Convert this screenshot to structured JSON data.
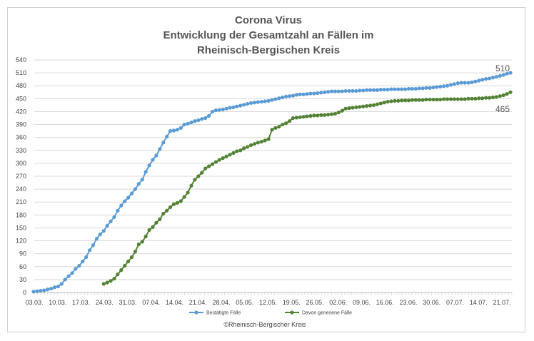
{
  "chart_data": {
    "type": "line",
    "title_lines": [
      "Corona Virus",
      "Entwicklung der Gesamtzahl an Fällen im",
      "Rheinisch-Bergischen Kreis"
    ],
    "xlabel": "",
    "ylabel": "",
    "ylim": [
      0,
      540
    ],
    "y_ticks": [
      0,
      30,
      60,
      90,
      120,
      150,
      180,
      210,
      240,
      270,
      300,
      330,
      360,
      390,
      420,
      450,
      480,
      510,
      540
    ],
    "x_range_days": [
      0,
      143
    ],
    "x_ticks": [
      "03.03.",
      "10.03.",
      "17.03.",
      "24.03.",
      "31.03.",
      "07.04.",
      "14.04.",
      "21.04.",
      "28.04.",
      "05.05.",
      "12.05.",
      "19.05.",
      "26.05.",
      "02.06.",
      "09.06.",
      "16.06.",
      "23.06.",
      "30.06.",
      "07.07.",
      "14.07.",
      "21.07."
    ],
    "grid": true,
    "legend_position": "bottom",
    "series": [
      {
        "name": "Bestätigte Fälle",
        "color": "#5b9bd5",
        "end_label": "510",
        "points": [
          [
            0,
            2
          ],
          [
            1,
            3
          ],
          [
            2,
            4
          ],
          [
            3,
            5
          ],
          [
            4,
            7
          ],
          [
            5,
            9
          ],
          [
            6,
            12
          ],
          [
            7,
            14
          ],
          [
            8,
            20
          ],
          [
            9,
            30
          ],
          [
            10,
            38
          ],
          [
            11,
            45
          ],
          [
            12,
            55
          ],
          [
            13,
            62
          ],
          [
            14,
            72
          ],
          [
            15,
            82
          ],
          [
            16,
            98
          ],
          [
            17,
            110
          ],
          [
            18,
            125
          ],
          [
            19,
            135
          ],
          [
            20,
            143
          ],
          [
            21,
            155
          ],
          [
            22,
            165
          ],
          [
            23,
            175
          ],
          [
            24,
            190
          ],
          [
            25,
            202
          ],
          [
            26,
            212
          ],
          [
            27,
            220
          ],
          [
            28,
            230
          ],
          [
            29,
            240
          ],
          [
            30,
            252
          ],
          [
            31,
            262
          ],
          [
            32,
            280
          ],
          [
            33,
            295
          ],
          [
            34,
            308
          ],
          [
            35,
            318
          ],
          [
            36,
            333
          ],
          [
            37,
            348
          ],
          [
            38,
            362
          ],
          [
            39,
            375
          ],
          [
            40,
            376
          ],
          [
            41,
            378
          ],
          [
            42,
            382
          ],
          [
            43,
            390
          ],
          [
            44,
            392
          ],
          [
            45,
            395
          ],
          [
            46,
            398
          ],
          [
            47,
            400
          ],
          [
            48,
            403
          ],
          [
            49,
            405
          ],
          [
            50,
            410
          ],
          [
            51,
            420
          ],
          [
            52,
            423
          ],
          [
            53,
            424
          ],
          [
            54,
            425
          ],
          [
            55,
            427
          ],
          [
            56,
            429
          ],
          [
            57,
            430
          ],
          [
            58,
            432
          ],
          [
            59,
            434
          ],
          [
            60,
            436
          ],
          [
            61,
            438
          ],
          [
            62,
            440
          ],
          [
            63,
            441
          ],
          [
            64,
            442
          ],
          [
            65,
            443
          ],
          [
            66,
            444
          ],
          [
            67,
            445
          ],
          [
            68,
            447
          ],
          [
            69,
            449
          ],
          [
            70,
            451
          ],
          [
            71,
            453
          ],
          [
            72,
            455
          ],
          [
            73,
            456
          ],
          [
            74,
            457
          ],
          [
            75,
            459
          ],
          [
            76,
            460
          ],
          [
            77,
            460
          ],
          [
            78,
            461
          ],
          [
            79,
            462
          ],
          [
            80,
            462
          ],
          [
            81,
            463
          ],
          [
            82,
            464
          ],
          [
            83,
            465
          ],
          [
            84,
            466
          ],
          [
            85,
            467
          ],
          [
            86,
            467
          ],
          [
            87,
            467
          ],
          [
            88,
            467
          ],
          [
            89,
            468
          ],
          [
            90,
            468
          ],
          [
            91,
            468
          ],
          [
            92,
            468
          ],
          [
            93,
            469
          ],
          [
            94,
            469
          ],
          [
            95,
            470
          ],
          [
            96,
            470
          ],
          [
            97,
            470
          ],
          [
            98,
            470
          ],
          [
            99,
            471
          ],
          [
            100,
            471
          ],
          [
            101,
            471
          ],
          [
            102,
            472
          ],
          [
            103,
            472
          ],
          [
            104,
            472
          ],
          [
            105,
            472
          ],
          [
            106,
            472
          ],
          [
            107,
            473
          ],
          [
            108,
            473
          ],
          [
            109,
            473
          ],
          [
            110,
            474
          ],
          [
            111,
            474
          ],
          [
            112,
            475
          ],
          [
            113,
            475
          ],
          [
            114,
            476
          ],
          [
            115,
            477
          ],
          [
            116,
            478
          ],
          [
            117,
            479
          ],
          [
            118,
            480
          ],
          [
            119,
            482
          ],
          [
            120,
            484
          ],
          [
            121,
            486
          ],
          [
            122,
            487
          ],
          [
            123,
            487
          ],
          [
            124,
            487
          ],
          [
            125,
            488
          ],
          [
            126,
            490
          ],
          [
            127,
            492
          ],
          [
            128,
            494
          ],
          [
            129,
            496
          ],
          [
            130,
            497
          ],
          [
            131,
            499
          ],
          [
            132,
            501
          ],
          [
            133,
            503
          ],
          [
            134,
            505
          ],
          [
            135,
            508
          ],
          [
            136,
            510
          ]
        ]
      },
      {
        "name": "Davon genesene Fälle",
        "color": "#548235",
        "end_label": "465",
        "points": [
          [
            20,
            20
          ],
          [
            21,
            23
          ],
          [
            22,
            27
          ],
          [
            23,
            32
          ],
          [
            24,
            42
          ],
          [
            25,
            52
          ],
          [
            26,
            62
          ],
          [
            27,
            72
          ],
          [
            28,
            82
          ],
          [
            29,
            95
          ],
          [
            30,
            112
          ],
          [
            31,
            118
          ],
          [
            32,
            130
          ],
          [
            33,
            145
          ],
          [
            34,
            152
          ],
          [
            35,
            162
          ],
          [
            36,
            170
          ],
          [
            37,
            183
          ],
          [
            38,
            190
          ],
          [
            39,
            198
          ],
          [
            40,
            205
          ],
          [
            41,
            208
          ],
          [
            42,
            212
          ],
          [
            43,
            222
          ],
          [
            44,
            232
          ],
          [
            45,
            248
          ],
          [
            46,
            262
          ],
          [
            47,
            270
          ],
          [
            48,
            278
          ],
          [
            49,
            288
          ],
          [
            50,
            293
          ],
          [
            51,
            298
          ],
          [
            52,
            303
          ],
          [
            53,
            308
          ],
          [
            54,
            312
          ],
          [
            55,
            316
          ],
          [
            56,
            320
          ],
          [
            57,
            324
          ],
          [
            58,
            328
          ],
          [
            59,
            330
          ],
          [
            60,
            335
          ],
          [
            61,
            338
          ],
          [
            62,
            342
          ],
          [
            63,
            345
          ],
          [
            64,
            348
          ],
          [
            65,
            350
          ],
          [
            66,
            353
          ],
          [
            67,
            356
          ],
          [
            68,
            378
          ],
          [
            69,
            382
          ],
          [
            70,
            385
          ],
          [
            71,
            390
          ],
          [
            72,
            393
          ],
          [
            73,
            398
          ],
          [
            74,
            405
          ],
          [
            75,
            406
          ],
          [
            76,
            407
          ],
          [
            77,
            408
          ],
          [
            78,
            409
          ],
          [
            79,
            410
          ],
          [
            80,
            411
          ],
          [
            81,
            411
          ],
          [
            82,
            412
          ],
          [
            83,
            412
          ],
          [
            84,
            413
          ],
          [
            85,
            414
          ],
          [
            86,
            415
          ],
          [
            87,
            418
          ],
          [
            88,
            422
          ],
          [
            89,
            427
          ],
          [
            90,
            428
          ],
          [
            91,
            429
          ],
          [
            92,
            430
          ],
          [
            93,
            431
          ],
          [
            94,
            432
          ],
          [
            95,
            433
          ],
          [
            96,
            434
          ],
          [
            97,
            435
          ],
          [
            98,
            437
          ],
          [
            99,
            439
          ],
          [
            100,
            441
          ],
          [
            101,
            443
          ],
          [
            102,
            444
          ],
          [
            103,
            445
          ],
          [
            104,
            445
          ],
          [
            105,
            446
          ],
          [
            106,
            446
          ],
          [
            107,
            446
          ],
          [
            108,
            447
          ],
          [
            109,
            447
          ],
          [
            110,
            447
          ],
          [
            111,
            447
          ],
          [
            112,
            448
          ],
          [
            113,
            448
          ],
          [
            114,
            448
          ],
          [
            115,
            448
          ],
          [
            116,
            448
          ],
          [
            117,
            449
          ],
          [
            118,
            449
          ],
          [
            119,
            449
          ],
          [
            120,
            449
          ],
          [
            121,
            449
          ],
          [
            122,
            449
          ],
          [
            123,
            449
          ],
          [
            124,
            450
          ],
          [
            125,
            450
          ],
          [
            126,
            450
          ],
          [
            127,
            451
          ],
          [
            128,
            451
          ],
          [
            129,
            452
          ],
          [
            130,
            452
          ],
          [
            131,
            453
          ],
          [
            132,
            454
          ],
          [
            133,
            456
          ],
          [
            134,
            458
          ],
          [
            135,
            461
          ],
          [
            136,
            465
          ]
        ]
      }
    ],
    "credit": "©Rheinisch-Bergischer Kreis"
  }
}
